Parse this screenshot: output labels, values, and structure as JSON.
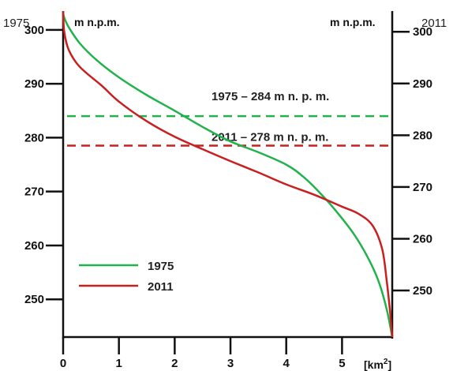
{
  "chart_data": {
    "type": "line",
    "left_axis_year": "1975",
    "right_axis_year": "2011",
    "ylabel_left": "m n.p.m.",
    "ylabel_right": "m n.p.m.",
    "xunit": "[km²]",
    "xlim": [
      0,
      5.9
    ],
    "ylim_left": [
      243,
      303.5
    ],
    "ylim_right": [
      241,
      304
    ],
    "x_ticks": [
      "0",
      "1",
      "2",
      "3",
      "4",
      "5"
    ],
    "y_ticks_left": [
      "250",
      "260",
      "270",
      "280",
      "290",
      "300"
    ],
    "y_ticks_right": [
      "250",
      "260",
      "270",
      "280",
      "290",
      "300"
    ],
    "grid": false,
    "legend_position": "bottom-left",
    "colors": {
      "1975": "#22b24c",
      "2011": "#c8201e",
      "axis": "#111111"
    },
    "series": [
      {
        "name": "1975",
        "axis": "left",
        "points": [
          [
            0,
            303
          ],
          [
            0.03,
            302
          ],
          [
            0.1,
            300.5
          ],
          [
            0.3,
            297.5
          ],
          [
            0.6,
            294.4
          ],
          [
            1.0,
            291.2
          ],
          [
            1.5,
            287.9
          ],
          [
            2.0,
            285.0
          ],
          [
            2.5,
            282.0
          ],
          [
            3.0,
            279.3
          ],
          [
            3.5,
            277.3
          ],
          [
            4.0,
            275.0
          ],
          [
            4.3,
            272.8
          ],
          [
            4.6,
            269.8
          ],
          [
            4.9,
            266.3
          ],
          [
            5.2,
            262.3
          ],
          [
            5.45,
            258.0
          ],
          [
            5.65,
            253.5
          ],
          [
            5.8,
            248.2
          ],
          [
            5.9,
            243
          ]
        ]
      },
      {
        "name": "2011",
        "axis": "right",
        "points": [
          [
            0,
            304
          ],
          [
            0.02,
            300
          ],
          [
            0.1,
            296.5
          ],
          [
            0.3,
            293.2
          ],
          [
            0.7,
            289.5
          ],
          [
            1.0,
            286.5
          ],
          [
            1.5,
            282.7
          ],
          [
            2.0,
            279.7
          ],
          [
            2.5,
            277.3
          ],
          [
            3.0,
            275.0
          ],
          [
            3.5,
            272.8
          ],
          [
            4.0,
            270.5
          ],
          [
            4.5,
            268.5
          ],
          [
            5.0,
            266.2
          ],
          [
            5.3,
            264.8
          ],
          [
            5.55,
            262.5
          ],
          [
            5.72,
            258.0
          ],
          [
            5.8,
            252.0
          ],
          [
            5.86,
            246.0
          ],
          [
            5.9,
            241
          ]
        ]
      }
    ],
    "reference_lines": [
      {
        "label": "1975 – 284 m n. p. m.",
        "value": 284,
        "axis": "left",
        "color": "#22b24c",
        "style": "dashed"
      },
      {
        "label": "2011 – 278 m n. p. m.",
        "value": 278,
        "axis": "right",
        "color": "#c8201e",
        "style": "dashed"
      }
    ],
    "legend": [
      "1975",
      "2011"
    ]
  }
}
